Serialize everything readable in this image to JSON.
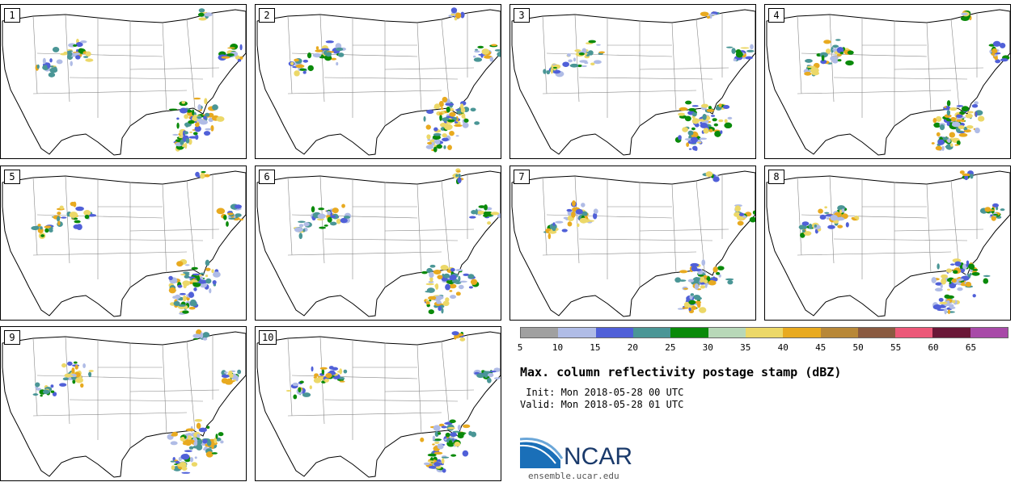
{
  "panels": [
    {
      "label": "1"
    },
    {
      "label": "2"
    },
    {
      "label": "3"
    },
    {
      "label": "4"
    },
    {
      "label": "5"
    },
    {
      "label": "6"
    },
    {
      "label": "7"
    },
    {
      "label": "8"
    },
    {
      "label": "9"
    },
    {
      "label": "10"
    }
  ],
  "colorbar": {
    "colors": [
      "#a0a0a0",
      "#b0bce6",
      "#5060d8",
      "#4a9696",
      "#0a8a0a",
      "#b8d8b8",
      "#ecd868",
      "#e8aa20",
      "#b88838",
      "#8a5a40",
      "#ec5878",
      "#6a1838",
      "#a84aa8"
    ],
    "ticks": [
      "5",
      "10",
      "15",
      "20",
      "25",
      "30",
      "35",
      "40",
      "45",
      "50",
      "55",
      "60",
      "65"
    ]
  },
  "title": "Max. column reflectivity postage stamp (dBZ)",
  "init": " Init: Mon 2018-05-28 00 UTC",
  "valid": "Valid: Mon 2018-05-28 01 UTC",
  "logo": {
    "text": "NCAR",
    "website": "ensemble.ucar.edu"
  }
}
